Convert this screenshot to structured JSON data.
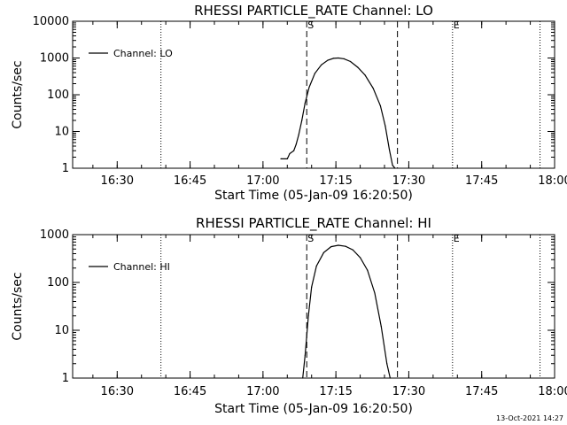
{
  "chart_data": [
    {
      "type": "line",
      "title": "RHESSI PARTICLE_RATE Channel: LO",
      "xlabel": "Start Time (05-Jan-09 16:20:50)",
      "ylabel": "Counts/sec",
      "yscale": "log",
      "ylim": [
        1,
        10000
      ],
      "yticks": [
        1,
        10,
        100,
        1000,
        10000
      ],
      "ytick_labels": [
        "1",
        "10",
        "100",
        "1000",
        "10000"
      ],
      "xlim": [
        "16:20:50",
        "18:00:00"
      ],
      "xticks": [
        "16:30",
        "16:45",
        "17:00",
        "17:15",
        "17:30",
        "17:45",
        "18:00"
      ],
      "grid": false,
      "legend": {
        "position": "top-left",
        "entries": [
          "Channel: LO"
        ]
      },
      "series": [
        {
          "name": "Channel: LO",
          "x": [
            "17:03:40",
            "17:05:00",
            "17:05:30",
            "17:06:20",
            "17:06:50",
            "17:07:20",
            "17:08:00",
            "17:08:40",
            "17:09:30",
            "17:10:40",
            "17:12:00",
            "17:13:20",
            "17:14:30",
            "17:15:30",
            "17:16:40",
            "17:18:00",
            "17:19:30",
            "17:21:00",
            "17:22:40",
            "17:24:10",
            "17:25:10",
            "17:26:00",
            "17:26:40",
            "17:27:10"
          ],
          "y": [
            1.8,
            1.8,
            2.5,
            3.0,
            4.5,
            8,
            20,
            60,
            160,
            380,
            650,
            870,
            980,
            1000,
            950,
            800,
            560,
            340,
            150,
            50,
            14,
            3.2,
            1.2,
            0.7
          ]
        }
      ],
      "vertical_lines": [
        {
          "label": "",
          "x": "16:39:00",
          "style": "dotted"
        },
        {
          "label": "S",
          "x": "17:09:00",
          "style": "dashed"
        },
        {
          "label": "",
          "x": "17:27:40",
          "style": "dashed"
        },
        {
          "label": "E",
          "x": "17:39:00",
          "style": "dotted"
        },
        {
          "label": "",
          "x": "17:57:00",
          "style": "dotted"
        }
      ]
    },
    {
      "type": "line",
      "title": "RHESSI PARTICLE_RATE Channel: HI",
      "xlabel": "Start Time (05-Jan-09 16:20:50)",
      "ylabel": "Counts/sec",
      "yscale": "log",
      "ylim": [
        1,
        1000
      ],
      "yticks": [
        1,
        10,
        100,
        1000
      ],
      "ytick_labels": [
        "1",
        "10",
        "100",
        "1000"
      ],
      "xlim": [
        "16:20:50",
        "18:00:00"
      ],
      "xticks": [
        "16:30",
        "16:45",
        "17:00",
        "17:15",
        "17:30",
        "17:45",
        "18:00"
      ],
      "grid": false,
      "legend": {
        "position": "top-left",
        "entries": [
          "Channel: HI"
        ]
      },
      "series": [
        {
          "name": "Channel: HI",
          "x": [
            "17:08:10",
            "17:08:40",
            "17:09:20",
            "17:10:00",
            "17:11:00",
            "17:12:30",
            "17:14:00",
            "17:15:30",
            "17:17:00",
            "17:18:30",
            "17:20:00",
            "17:21:30",
            "17:23:00",
            "17:24:20",
            "17:25:30",
            "17:26:10"
          ],
          "y": [
            1,
            3,
            20,
            80,
            220,
            420,
            560,
            600,
            570,
            480,
            330,
            180,
            60,
            12,
            2,
            0.8
          ]
        }
      ],
      "vertical_lines": [
        {
          "label": "",
          "x": "16:39:00",
          "style": "dotted"
        },
        {
          "label": "S",
          "x": "17:09:00",
          "style": "dashed"
        },
        {
          "label": "",
          "x": "17:27:40",
          "style": "dashed"
        },
        {
          "label": "E",
          "x": "17:39:00",
          "style": "dotted"
        },
        {
          "label": "",
          "x": "17:57:00",
          "style": "dotted"
        }
      ]
    }
  ],
  "footer": {
    "timestamp": "13-Oct-2021 14:27"
  }
}
